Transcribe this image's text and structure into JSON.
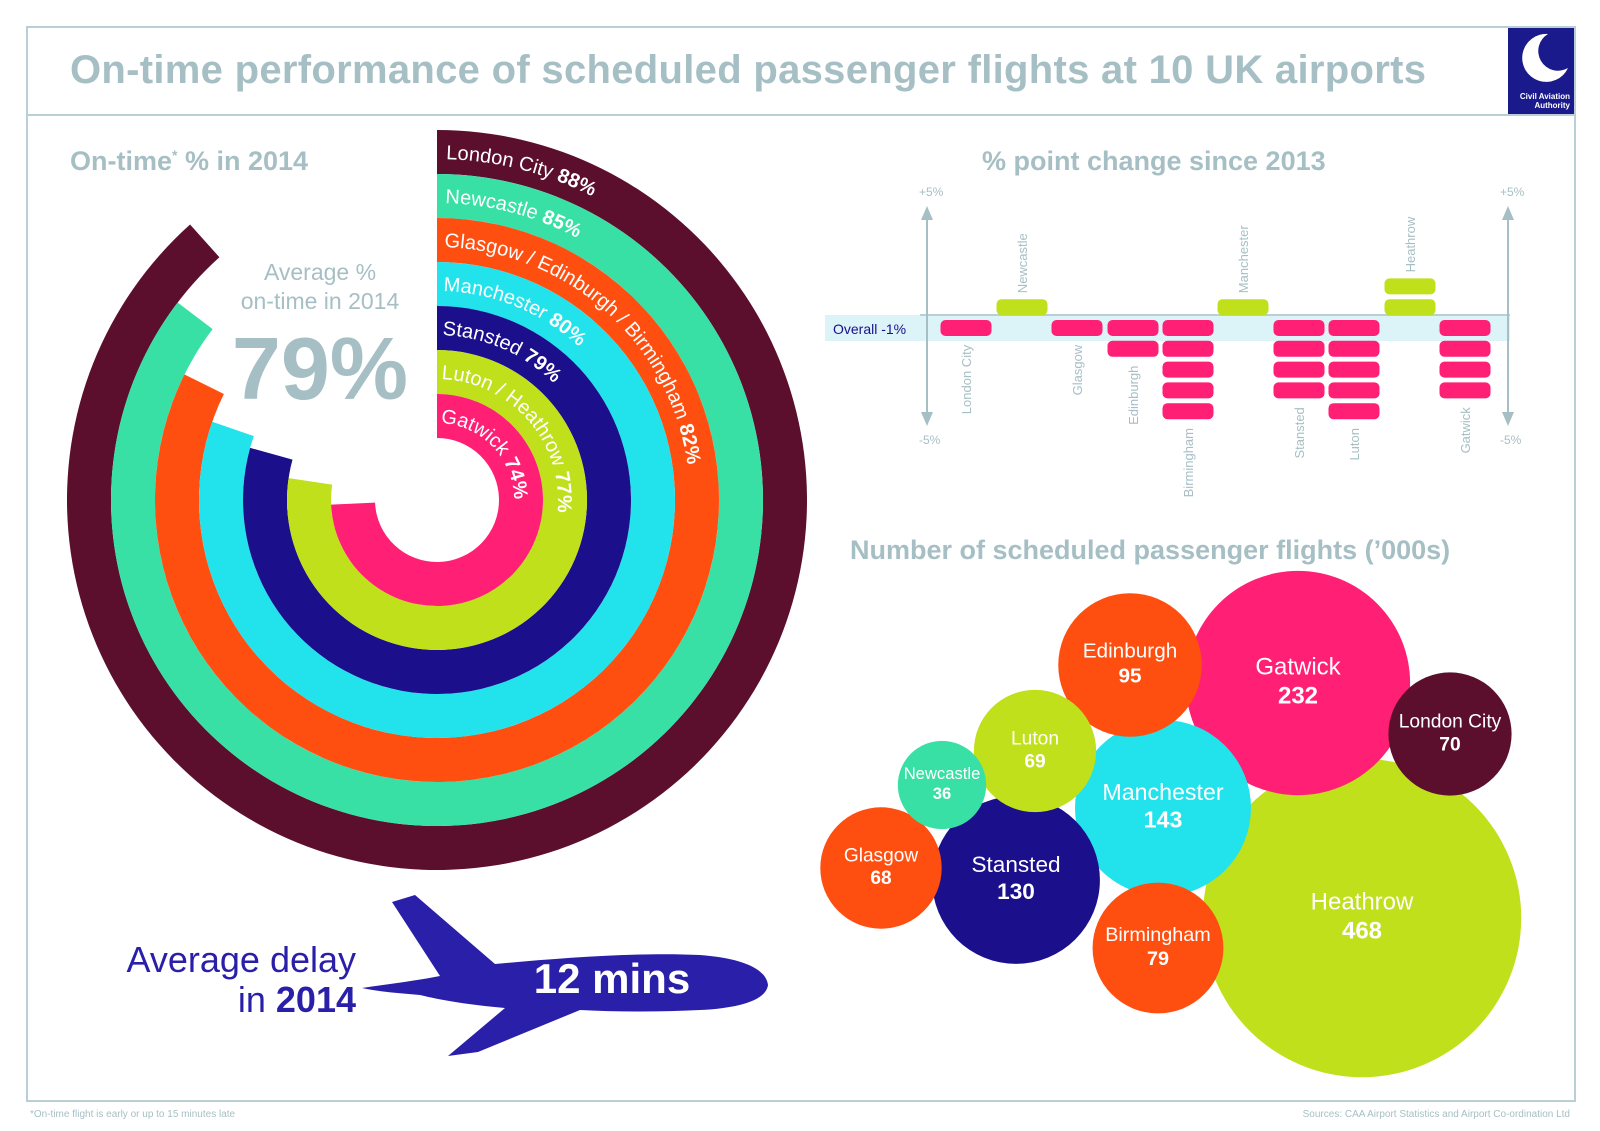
{
  "title": "On-time performance of scheduled passenger flights at 10 UK airports",
  "logo": {
    "line1": "Civil Aviation",
    "line2": "Authority"
  },
  "ontime": {
    "heading_main": "On-time",
    "heading_mark": "*",
    "heading_rest": " % in 2014",
    "average_label_1": "Average %",
    "average_label_2": "on-time in 2014",
    "average_value": "79%"
  },
  "change": {
    "heading": "% point change since 2013",
    "axis_top": "+5%",
    "axis_bottom": "-5%",
    "overall_label": "Overall -1%"
  },
  "flights": {
    "heading": "Number of scheduled passenger flights (’000s)"
  },
  "delay": {
    "label_1": "Average delay",
    "label_2": "in",
    "label_year": "2014",
    "value": "12 mins"
  },
  "footnote": "*On-time flight is early or up to 15 minutes late",
  "source": "Sources: CAA Airport Statistics and Airport Co-ordination Ltd",
  "colors": {
    "maroon": "#5b0f2d",
    "green": "#38e0a6",
    "orange": "#ff4f10",
    "cyan": "#22e3ec",
    "navy": "#1b0f8c",
    "lime": "#bfe01a",
    "pink": "#ff1f74",
    "grey": "#a6bfc4",
    "plane": "#2a1fa8"
  },
  "chart_data": [
    {
      "type": "radial-bar",
      "title": "On-time* % in 2014",
      "series": [
        {
          "name": "London City",
          "value": 88,
          "label": "88%",
          "color": "#5b0f2d"
        },
        {
          "name": "Newcastle",
          "value": 85,
          "label": "85%",
          "color": "#38e0a6"
        },
        {
          "name": "Glasgow / Edinburgh / Birmingham",
          "value": 82,
          "label": "82%",
          "color": "#ff4f10"
        },
        {
          "name": "Manchester",
          "value": 80,
          "label": "80%",
          "color": "#22e3ec"
        },
        {
          "name": "Stansted",
          "value": 79,
          "label": "79%",
          "color": "#1b0f8c"
        },
        {
          "name": "Luton / Heathrow",
          "value": 77,
          "label": "77%",
          "color": "#bfe01a"
        },
        {
          "name": "Gatwick",
          "value": 74,
          "label": "74%",
          "color": "#ff1f74"
        }
      ],
      "average": 79
    },
    {
      "type": "bar",
      "title": "% point change since 2013",
      "ylim": [
        -5,
        5
      ],
      "overall": -1,
      "categories": [
        "London City",
        "Newcastle",
        "Glasgow",
        "Edinburgh",
        "Birmingham",
        "Manchester",
        "Stansted",
        "Luton",
        "Heathrow",
        "Gatwick"
      ],
      "values": [
        -1,
        1,
        -1,
        -2,
        -5,
        1,
        -4,
        -5,
        2,
        -4
      ]
    },
    {
      "type": "bubble",
      "title": "Number of scheduled passenger flights ('000s)",
      "points": [
        {
          "name": "Heathrow",
          "value": 468,
          "label": "468",
          "color": "#bfe01a"
        },
        {
          "name": "Gatwick",
          "value": 232,
          "label": "232",
          "color": "#ff1f74"
        },
        {
          "name": "Manchester",
          "value": 143,
          "label": "143",
          "color": "#22e3ec"
        },
        {
          "name": "Stansted",
          "value": 130,
          "label": "130",
          "color": "#1b0f8c"
        },
        {
          "name": "Edinburgh",
          "value": 95,
          "label": "95",
          "color": "#ff4f10"
        },
        {
          "name": "Birmingham",
          "value": 79,
          "label": "79",
          "color": "#ff4f10"
        },
        {
          "name": "London City",
          "value": 70,
          "label": "70",
          "color": "#5b0f2d"
        },
        {
          "name": "Luton",
          "value": 69,
          "label": "69",
          "color": "#bfe01a"
        },
        {
          "name": "Glasgow",
          "value": 68,
          "label": "68",
          "color": "#ff4f10"
        },
        {
          "name": "Newcastle",
          "value": 36,
          "label": "36",
          "color": "#38e0a6"
        }
      ]
    }
  ]
}
